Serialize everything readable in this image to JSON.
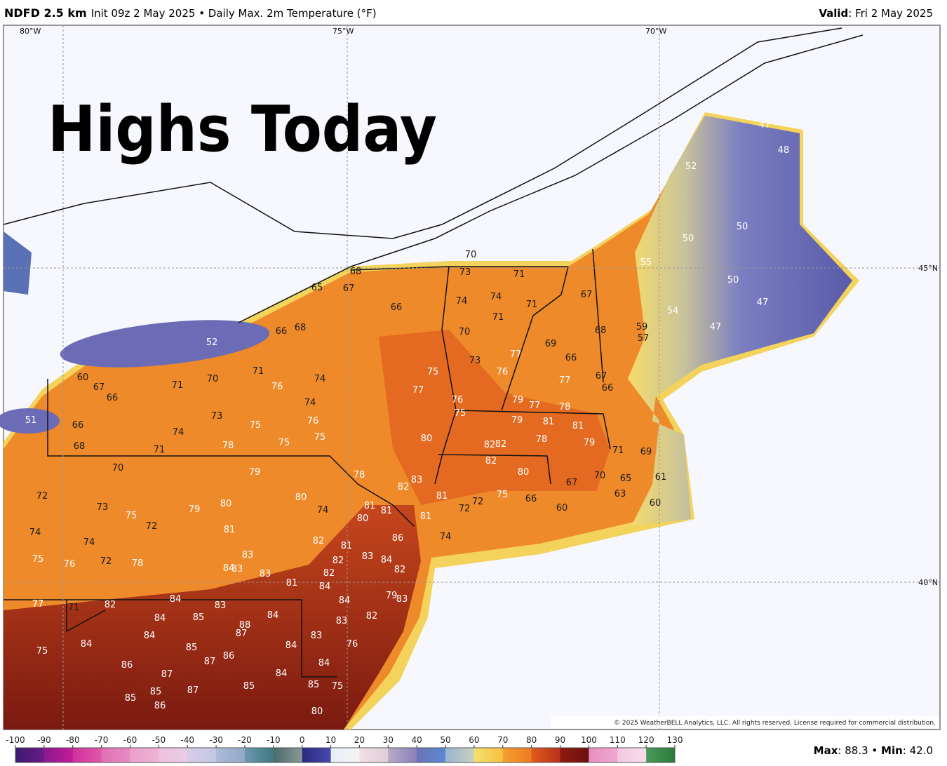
{
  "header": {
    "model": "NDFD 2.5 km",
    "description": "Init 09z 2 May 2025 • Daily Max. 2m Temperature (°F)",
    "valid_label": "Valid",
    "valid_date": ": Fri 2 May 2025"
  },
  "overlay_title": "Highs Today",
  "map": {
    "longitude_labels": [
      "80°W",
      "75°W",
      "70°W"
    ],
    "latitude_labels": [
      "45°N",
      "40°N"
    ],
    "temperature_labels": [
      47,
      48,
      52,
      50,
      50,
      55,
      50,
      47,
      54,
      47,
      59,
      57,
      70,
      73,
      68,
      71,
      65,
      67,
      74,
      74,
      71,
      66,
      67,
      71,
      70,
      68,
      69,
      66,
      68,
      52,
      73,
      77,
      66,
      76,
      75,
      67,
      77,
      71,
      70,
      74,
      76,
      66,
      60,
      67,
      71,
      66,
      77,
      76,
      79,
      77,
      78,
      75,
      74,
      51,
      73,
      75,
      76,
      79,
      81,
      81,
      66,
      74,
      75,
      80,
      78,
      79,
      68,
      71,
      78,
      75,
      82,
      82,
      71,
      69,
      82,
      70,
      79,
      80,
      78,
      70,
      65,
      83,
      82,
      67,
      61,
      72,
      80,
      81,
      75,
      66,
      73,
      75,
      79,
      80,
      74,
      81,
      81,
      72,
      72,
      60,
      63,
      60,
      80,
      81,
      72,
      81,
      74,
      74,
      82,
      86,
      74,
      81,
      83,
      83,
      84,
      82,
      75,
      76,
      72,
      78,
      84,
      83,
      82,
      83,
      82,
      81,
      84,
      79,
      83,
      84,
      77,
      71,
      82,
      83,
      84,
      84,
      85,
      84,
      83,
      82,
      88,
      87,
      84,
      83,
      84,
      85,
      84,
      76,
      75,
      86,
      87,
      84,
      86,
      87,
      84,
      85,
      85,
      75,
      87,
      85,
      85,
      86,
      80
    ],
    "copyright": "© 2025 WeatherBELL Analytics, LLC. All rights reserved. License required for commercial distribution."
  },
  "colorbar": {
    "ticks": [
      -100,
      -90,
      -80,
      -70,
      -60,
      -50,
      -40,
      -30,
      -20,
      -10,
      0,
      10,
      20,
      30,
      40,
      50,
      60,
      70,
      80,
      90,
      100,
      110,
      120,
      130
    ]
  },
  "footer": {
    "max_label": "Max",
    "max_text": ": 88.3 • ",
    "min_label": "Min",
    "min_text": ": 42.0"
  }
}
